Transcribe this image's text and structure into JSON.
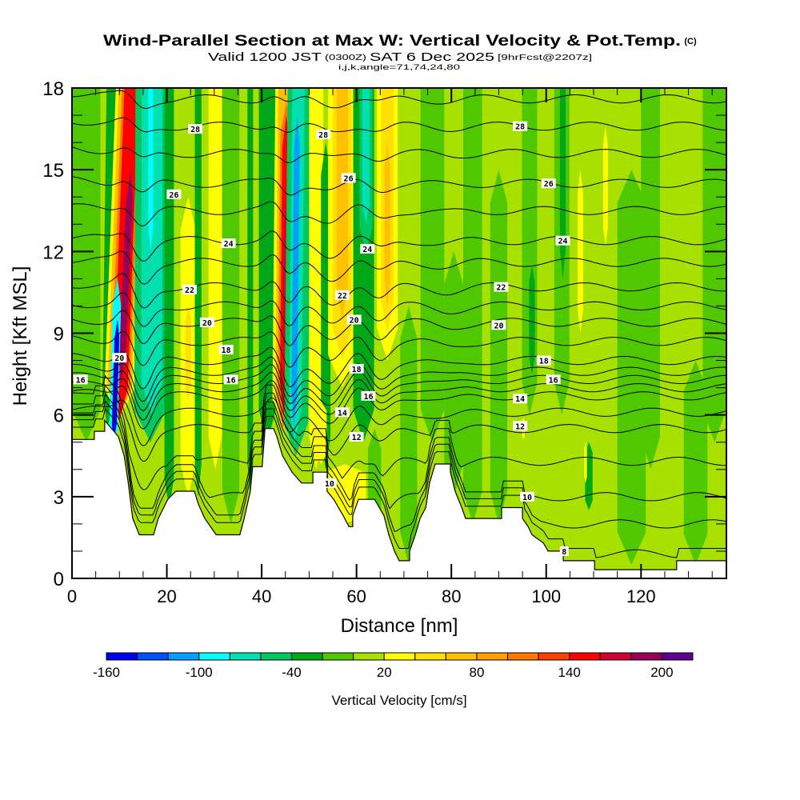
{
  "chart_data": {
    "type": "heatmap",
    "title": "Wind-Parallel Section at Max W: Vertical Velocity & Pot.Temp.",
    "title_mark": "(C)",
    "subtitle": {
      "valid_prefix": "Valid 1200 JST",
      "utc": "(0300Z)",
      "date": "SAT 6 Dec 2025",
      "forecast": "[9hrFcst@2207z]"
    },
    "subsubtitle": "i,j,k,angle=71,74,24,80",
    "xlabel": "Distance [nm]",
    "ylabel": "Height [Kft MSL]",
    "xlim": [
      0,
      138
    ],
    "ylim": [
      0,
      18
    ],
    "x_ticks": [
      "0",
      "20",
      "40",
      "60",
      "80",
      "100",
      "120"
    ],
    "x_tick_values": [
      0,
      20,
      40,
      60,
      80,
      100,
      120
    ],
    "x_minor_step": 5,
    "y_ticks": [
      "0",
      "3",
      "6",
      "9",
      "12",
      "15",
      "18"
    ],
    "y_tick_values": [
      0,
      3,
      6,
      9,
      12,
      15,
      18
    ],
    "y_minor_step": 1,
    "colorbar": {
      "label": "Vertical Velocity [cm/s]",
      "bounds": [
        -160,
        220
      ],
      "step": 20,
      "colors": [
        "#0000f0",
        "#0050ff",
        "#00a0ff",
        "#00ffff",
        "#00e0b0",
        "#00c860",
        "#00a818",
        "#50c800",
        "#a8e000",
        "#ffff00",
        "#ffe000",
        "#ffc000",
        "#ffa000",
        "#ff7800",
        "#ff4000",
        "#ff0000",
        "#d00030",
        "#980058",
        "#600090"
      ],
      "tick_labels": [
        "-160",
        "-100",
        "-40",
        "20",
        "80",
        "140",
        "200"
      ],
      "tick_values": [
        -160,
        -100,
        -40,
        20,
        80,
        140,
        200
      ]
    },
    "background_w": 10,
    "w_bands": [
      {
        "x0": 3,
        "x1": 3,
        "w_half": 3,
        "z0": 5,
        "z1": 18,
        "w": -10
      },
      {
        "x0": 7.5,
        "x1": 8.5,
        "w_half": 1.2,
        "z0": 5.5,
        "z1": 18,
        "w": -30
      },
      {
        "x0": 9.8,
        "x1": 12.5,
        "w_half": 3.2,
        "z0": 5.8,
        "z1": 18,
        "w": 30
      },
      {
        "x0": 9.8,
        "x1": 12.5,
        "w_half": 2.6,
        "z0": 5.8,
        "z1": 18,
        "w": 70
      },
      {
        "x0": 9.9,
        "x1": 12.6,
        "w_half": 2.0,
        "z0": 5.8,
        "z1": 18,
        "w": 110
      },
      {
        "x0": 10.0,
        "x1": 12.6,
        "w_half": 1.5,
        "z0": 5.8,
        "z1": 18,
        "w": 150
      },
      {
        "x0": 10.3,
        "x1": 12.4,
        "w_half": 0.7,
        "z0": 7,
        "z1": 15,
        "w": 190
      },
      {
        "x0": 8.6,
        "x1": 9.6,
        "w_half": 0.9,
        "z0": 4.5,
        "z1": 11,
        "w": -90
      },
      {
        "x0": 8.8,
        "x1": 9.6,
        "w_half": 0.5,
        "z0": 5,
        "z1": 9.5,
        "w": -150
      },
      {
        "x0": 16.5,
        "x1": 16.8,
        "w_half": 3.4,
        "z0": 5,
        "z1": 18,
        "w": -50
      },
      {
        "x0": 16.8,
        "x1": 16.9,
        "w_half": 2.2,
        "z0": 6,
        "z1": 18,
        "w": -70
      },
      {
        "x0": 16.6,
        "x1": 16.6,
        "w_half": 0.5,
        "z0": 12,
        "z1": 18,
        "w": -90
      },
      {
        "x0": 20.5,
        "x1": 20.5,
        "w_half": 1.0,
        "z0": 2.5,
        "z1": 18,
        "w": -30
      },
      {
        "x0": 24.5,
        "x1": 24.5,
        "w_half": 1.6,
        "z0": 3.0,
        "z1": 14,
        "w": 30
      },
      {
        "x0": 24.5,
        "x1": 24.5,
        "w_half": 0.6,
        "z0": 6.5,
        "z1": 10,
        "w": 50
      },
      {
        "x0": 26.6,
        "x1": 26.6,
        "w_half": 0.7,
        "z0": 3,
        "z1": 18,
        "w": -30
      },
      {
        "x0": 30.2,
        "x1": 30.2,
        "w_half": 1.4,
        "z0": 4,
        "z1": 18,
        "w": 30
      },
      {
        "x0": 33.5,
        "x1": 33.5,
        "w_half": 1.8,
        "z0": 2,
        "z1": 18,
        "w": -10
      },
      {
        "x0": 37.6,
        "x1": 37.6,
        "w_half": 0.6,
        "z0": 3,
        "z1": 18,
        "w": -30
      },
      {
        "x0": 41.2,
        "x1": 41.2,
        "w_half": 1.8,
        "z0": 5,
        "z1": 18,
        "w": -30
      },
      {
        "x0": 44.5,
        "x1": 45.2,
        "w_half": 2.3,
        "z0": 5.4,
        "z1": 18,
        "w": 30
      },
      {
        "x0": 44.5,
        "x1": 45.2,
        "w_half": 1.7,
        "z0": 5.4,
        "z1": 18,
        "w": 70
      },
      {
        "x0": 44.5,
        "x1": 45.2,
        "w_half": 1.2,
        "z0": 5.5,
        "z1": 17.5,
        "w": 110
      },
      {
        "x0": 44.6,
        "x1": 45.2,
        "w_half": 0.8,
        "z0": 6,
        "z1": 17,
        "w": 150
      },
      {
        "x0": 44.7,
        "x1": 45.2,
        "w_half": 0.35,
        "z0": 8,
        "z1": 14,
        "w": 170
      },
      {
        "x0": 47.2,
        "x1": 48.0,
        "w_half": 2.5,
        "z0": 4.5,
        "z1": 18,
        "w": -50
      },
      {
        "x0": 47.0,
        "x1": 47.8,
        "w_half": 1.3,
        "z0": 5,
        "z1": 18,
        "w": -70
      },
      {
        "x0": 46.8,
        "x1": 47.5,
        "w_half": 0.6,
        "z0": 5.6,
        "z1": 17,
        "w": -110
      },
      {
        "x0": 51.5,
        "x1": 51.5,
        "w_half": 1.5,
        "z0": 4,
        "z1": 18,
        "w": 30
      },
      {
        "x0": 53.5,
        "x1": 53.5,
        "w_half": 1.0,
        "z0": 4,
        "z1": 16,
        "w": -30
      },
      {
        "x0": 57.0,
        "x1": 57.0,
        "w_half": 3.0,
        "z0": 7,
        "z1": 18,
        "w": 30
      },
      {
        "x0": 57.0,
        "x1": 57.0,
        "w_half": 2.0,
        "z0": 8,
        "z1": 18,
        "w": 50
      },
      {
        "x0": 57.0,
        "x1": 57.0,
        "w_half": 1.2,
        "z0": 9.5,
        "z1": 18,
        "w": 70
      },
      {
        "x0": 61.5,
        "x1": 61.5,
        "w_half": 2.2,
        "z0": 5,
        "z1": 18,
        "w": -30
      },
      {
        "x0": 62.0,
        "x1": 62.0,
        "w_half": 1.4,
        "z0": 12,
        "z1": 18,
        "w": -50
      },
      {
        "x0": 62.0,
        "x1": 62.0,
        "w_half": 0.8,
        "z0": 13,
        "z1": 18,
        "w": -70
      },
      {
        "x0": 66.5,
        "x1": 66.5,
        "w_half": 2.2,
        "z0": 8,
        "z1": 18,
        "w": 30
      },
      {
        "x0": 66.5,
        "x1": 66.5,
        "w_half": 1.3,
        "z0": 9,
        "z1": 18,
        "w": 50
      },
      {
        "x0": 66.5,
        "x1": 66.5,
        "w_half": 0.6,
        "z0": 10,
        "z1": 16,
        "w": 70
      },
      {
        "x0": 57.5,
        "x1": 57.5,
        "w_half": 4.5,
        "z0": 2,
        "z1": 4.2,
        "w": 30
      },
      {
        "x0": 52.5,
        "x1": 52.5,
        "w_half": 1.2,
        "z0": 4.2,
        "z1": 6.5,
        "w": 30
      },
      {
        "x0": 63.8,
        "x1": 63.8,
        "w_half": 1.4,
        "z0": 0.5,
        "z1": 5.5,
        "w": -10
      },
      {
        "x0": 71.0,
        "x1": 71.0,
        "w_half": 1.8,
        "z0": 0.5,
        "z1": 10,
        "w": -10
      },
      {
        "x0": 76.0,
        "x1": 76.0,
        "w_half": 2.5,
        "z0": 5,
        "z1": 18,
        "w": -10
      },
      {
        "x0": 80.5,
        "x1": 80.5,
        "w_half": 2.0,
        "z0": 3,
        "z1": 12,
        "w": -10
      },
      {
        "x0": 84.5,
        "x1": 84.5,
        "w_half": 2.0,
        "z0": 2,
        "z1": 18,
        "w": -10
      },
      {
        "x0": 90.0,
        "x1": 90.0,
        "w_half": 1.8,
        "z0": 2,
        "z1": 15,
        "w": -10
      },
      {
        "x0": 96.5,
        "x1": 96.5,
        "w_half": 1.6,
        "z0": 6,
        "z1": 18,
        "w": -10
      },
      {
        "x0": 97.0,
        "x1": 97.0,
        "w_half": 0.6,
        "z0": 7.5,
        "z1": 11.5,
        "w": -30
      },
      {
        "x0": 103.3,
        "x1": 103.3,
        "w_half": 1.6,
        "z0": 6,
        "z1": 18,
        "w": -10
      },
      {
        "x0": 103.5,
        "x1": 103.5,
        "w_half": 0.6,
        "z0": 11,
        "z1": 18,
        "w": -30
      },
      {
        "x0": 107.2,
        "x1": 107.2,
        "w_half": 0.6,
        "z0": 9,
        "z1": 15,
        "w": 30
      },
      {
        "x0": 112.5,
        "x1": 112.5,
        "w_half": 0.5,
        "z0": 12.2,
        "z1": 16.6,
        "w": 30
      },
      {
        "x0": 109.0,
        "x1": 109.0,
        "w_half": 0.8,
        "z0": 2.5,
        "z1": 5,
        "w": -30
      },
      {
        "x0": 108.3,
        "x1": 108.3,
        "w_half": 0.3,
        "z0": 3.5,
        "z1": 5,
        "w": 30
      },
      {
        "x0": 95.2,
        "x1": 95.2,
        "w_half": 0.3,
        "z0": 5.1,
        "z1": 5.9,
        "w": 30
      },
      {
        "x0": 118.0,
        "x1": 118.0,
        "w_half": 3.0,
        "z0": 0.5,
        "z1": 15,
        "w": -10
      },
      {
        "x0": 122.0,
        "x1": 122.0,
        "w_half": 2.0,
        "z0": 4,
        "z1": 18,
        "w": -10
      },
      {
        "x0": 131.5,
        "x1": 131.5,
        "w_half": 2.5,
        "z0": 0.5,
        "z1": 8,
        "w": -10
      },
      {
        "x0": 135.5,
        "x1": 135.5,
        "w_half": 2.5,
        "z0": 5,
        "z1": 18,
        "w": -10
      }
    ],
    "terrain": {
      "x": [
        0,
        4.7,
        4.7,
        6.9,
        6.9,
        9.8,
        11.0,
        11.8,
        12.8,
        14.2,
        17.2,
        18.2,
        20.2,
        21.9,
        25.8,
        26.7,
        28.0,
        30.4,
        35.4,
        36.3,
        37.6,
        38.1,
        40.1,
        40.7,
        42.5,
        43.2,
        44.4,
        45.4,
        46.4,
        48.4,
        50.8,
        50.8,
        53.8,
        53.8,
        55.2,
        56.2,
        57.2,
        58.4,
        59.2,
        59.2,
        60.4,
        63.8,
        64.8,
        65.8,
        66.8,
        68.0,
        69.0,
        71.2,
        71.2,
        72.4,
        73.4,
        74.6,
        75.4,
        76.6,
        79.8,
        79.8,
        80.8,
        82.2,
        83.0,
        90.6,
        90.6,
        95.0,
        95.0,
        96.2,
        97.0,
        99.4,
        100.4,
        103.6,
        103.6,
        110.2,
        110.2,
        127.5,
        127.5,
        138
      ],
      "z": [
        5.1,
        5.1,
        5.4,
        5.4,
        5.8,
        5.2,
        4.5,
        3.6,
        2.2,
        1.6,
        1.6,
        2.2,
        2.9,
        3.2,
        3.2,
        2.7,
        2.2,
        1.6,
        1.6,
        2.2,
        3.2,
        4.1,
        4.1,
        5.5,
        5.5,
        5.2,
        4.5,
        4.2,
        3.9,
        3.5,
        3.5,
        3.9,
        3.9,
        3.2,
        2.9,
        2.6,
        2.3,
        1.9,
        1.9,
        2.3,
        2.9,
        2.9,
        2.6,
        2.3,
        1.6,
        1.0,
        0.65,
        0.65,
        1.0,
        1.6,
        2.2,
        2.6,
        3.5,
        4.2,
        4.2,
        3.9,
        3.2,
        2.6,
        2.2,
        2.2,
        2.6,
        2.6,
        2.2,
        1.9,
        1.6,
        1.3,
        1.0,
        1.0,
        0.65,
        0.65,
        0.32,
        0.32,
        0.65,
        0.65
      ]
    },
    "theta_contours": {
      "interval": 1,
      "levels": [
        8,
        9,
        10,
        11,
        12,
        13,
        14,
        15,
        16,
        17,
        18,
        19,
        20,
        21,
        22,
        23,
        24,
        25,
        26,
        27,
        28,
        29
      ],
      "ref_height_kft": [
        0.9,
        2.0,
        3.0,
        4.3,
        5.5,
        6.1,
        6.7,
        7.0,
        7.3,
        7.6,
        8.0,
        8.7,
        9.4,
        10.0,
        10.7,
        11.6,
        12.4,
        13.5,
        14.5,
        15.6,
        16.6,
        17.6
      ]
    },
    "contour_labels": [
      {
        "text": "28",
        "x": 26.0,
        "z": 16.5
      },
      {
        "text": "28",
        "x": 53.0,
        "z": 16.3
      },
      {
        "text": "28",
        "x": 94.5,
        "z": 16.6
      },
      {
        "text": "26",
        "x": 21.5,
        "z": 14.1
      },
      {
        "text": "26",
        "x": 58.3,
        "z": 14.7
      },
      {
        "text": "26",
        "x": 100.5,
        "z": 14.5
      },
      {
        "text": "24",
        "x": 33.0,
        "z": 12.3
      },
      {
        "text": "24",
        "x": 62.3,
        "z": 12.1
      },
      {
        "text": "24",
        "x": 103.5,
        "z": 12.4
      },
      {
        "text": "22",
        "x": 24.8,
        "z": 10.6
      },
      {
        "text": "22",
        "x": 57.0,
        "z": 10.4
      },
      {
        "text": "22",
        "x": 90.5,
        "z": 10.7
      },
      {
        "text": "20",
        "x": 28.5,
        "z": 9.4
      },
      {
        "text": "20",
        "x": 59.5,
        "z": 9.5
      },
      {
        "text": "20",
        "x": 90.0,
        "z": 9.3
      },
      {
        "text": "20",
        "x": 10.0,
        "z": 8.1
      },
      {
        "text": "18",
        "x": 32.5,
        "z": 8.4
      },
      {
        "text": "18",
        "x": 60.0,
        "z": 7.7
      },
      {
        "text": "18",
        "x": 99.5,
        "z": 8.0
      },
      {
        "text": "16",
        "x": 1.8,
        "z": 7.3
      },
      {
        "text": "16",
        "x": 33.5,
        "z": 7.3
      },
      {
        "text": "16",
        "x": 62.5,
        "z": 6.7
      },
      {
        "text": "16",
        "x": 101.5,
        "z": 7.3
      },
      {
        "text": "14",
        "x": 57.0,
        "z": 6.1
      },
      {
        "text": "14",
        "x": 94.5,
        "z": 6.6
      },
      {
        "text": "12",
        "x": 60.0,
        "z": 5.2
      },
      {
        "text": "12",
        "x": 94.5,
        "z": 5.6
      },
      {
        "text": "10",
        "x": 54.3,
        "z": 3.5
      },
      {
        "text": "10",
        "x": 96.0,
        "z": 3.0
      },
      {
        "text": "8",
        "x": 103.8,
        "z": 1.0
      }
    ]
  }
}
